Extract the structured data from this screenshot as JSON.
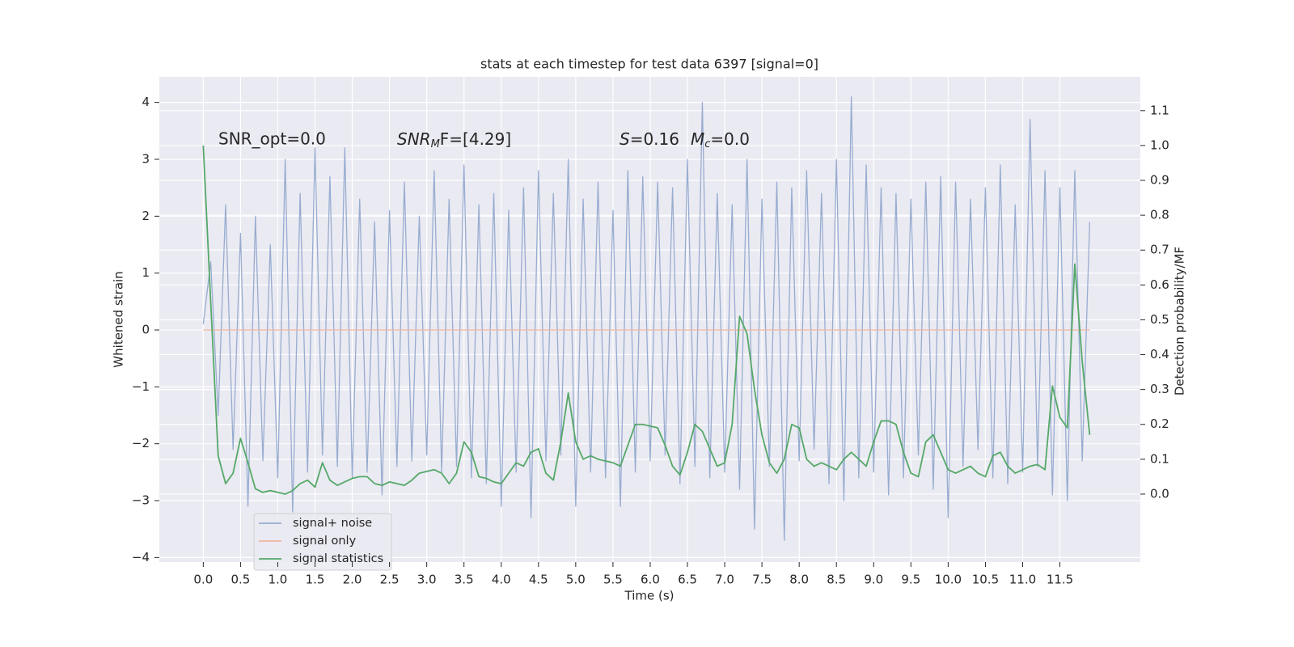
{
  "chart_data": {
    "type": "line",
    "title": "stats at each timestep for test data 6397 [signal=0]",
    "xlabel": "Time (s)",
    "ylabel": "Whitened strain",
    "y2label": "Detection probability/MF",
    "annotations": [
      [
        "SNR_opt=0.0"
      ],
      [
        "SNR",
        "M",
        "F=[4.29]"
      ],
      [
        "S",
        "=0.16",
        "M",
        "c",
        "=0.0"
      ]
    ],
    "x": [
      0,
      0.1,
      0.2,
      0.3,
      0.4,
      0.5,
      0.6,
      0.7,
      0.8,
      0.9,
      1,
      1.1,
      1.2,
      1.3,
      1.4,
      1.5,
      1.6,
      1.7,
      1.8,
      1.9,
      2,
      2.1,
      2.2,
      2.3,
      2.4,
      2.5,
      2.6,
      2.7,
      2.8,
      2.9,
      3,
      3.1,
      3.2,
      3.3,
      3.4,
      3.5,
      3.6,
      3.7,
      3.8,
      3.9,
      4,
      4.1,
      4.2,
      4.3,
      4.4,
      4.5,
      4.6,
      4.7,
      4.8,
      4.9,
      5,
      5.1,
      5.2,
      5.3,
      5.4,
      5.5,
      5.6,
      5.7,
      5.8,
      5.9,
      6,
      6.1,
      6.2,
      6.3,
      6.4,
      6.5,
      6.6,
      6.7,
      6.8,
      6.9,
      7,
      7.1,
      7.2,
      7.3,
      7.4,
      7.5,
      7.6,
      7.7,
      7.8,
      7.9,
      8,
      8.1,
      8.2,
      8.3,
      8.4,
      8.5,
      8.6,
      8.7,
      8.8,
      8.9,
      9,
      9.1,
      9.2,
      9.3,
      9.4,
      9.5,
      9.6,
      9.7,
      9.8,
      9.9,
      10,
      10.1,
      10.2,
      10.3,
      10.4,
      10.5,
      10.6,
      10.7,
      10.8,
      10.9,
      11,
      11.1,
      11.2,
      11.3,
      11.4,
      11.5,
      11.6,
      11.7,
      11.8,
      11.9
    ],
    "series": [
      {
        "name": "signal+ noise",
        "color": "#98acd0",
        "axis": "y",
        "values": [
          0.1,
          1.2,
          -1.5,
          2.2,
          -2.1,
          1.7,
          -3.1,
          2.0,
          -2.3,
          1.5,
          -2.6,
          3.0,
          -3.2,
          2.4,
          -2.5,
          3.2,
          -2.2,
          2.7,
          -2.4,
          3.2,
          -2.6,
          2.3,
          -2.5,
          1.9,
          -2.9,
          2.1,
          -2.4,
          2.6,
          -2.3,
          2.0,
          -2.2,
          2.8,
          -2.5,
          2.3,
          -2.4,
          2.9,
          -2.6,
          2.2,
          -2.7,
          2.4,
          -3.1,
          2.1,
          -2.5,
          2.5,
          -3.3,
          2.8,
          -2.3,
          2.4,
          -2.2,
          3.0,
          -3.1,
          2.3,
          -2.5,
          2.6,
          -2.6,
          2.1,
          -3.1,
          2.8,
          -2.5,
          2.7,
          -2.3,
          2.6,
          -2.2,
          2.5,
          -2.7,
          3.0,
          -2.4,
          4.0,
          -2.6,
          2.4,
          -2.5,
          2.2,
          -2.8,
          3.0,
          -3.5,
          2.3,
          -2.4,
          2.6,
          -3.7,
          2.5,
          -2.3,
          2.8,
          -2.1,
          2.4,
          -2.7,
          3.0,
          -3.0,
          4.1,
          -2.6,
          2.9,
          -2.5,
          2.5,
          -2.9,
          2.4,
          -2.6,
          2.3,
          -2.2,
          2.6,
          -2.8,
          2.7,
          -3.3,
          2.6,
          -2.4,
          2.3,
          -2.1,
          2.5,
          -2.6,
          2.9,
          -2.7,
          2.2,
          -2.5,
          3.7,
          -2.4,
          2.8,
          -2.9,
          2.5,
          -3.0,
          2.8,
          -2.3,
          1.9
        ]
      },
      {
        "name": "signal only",
        "color": "#eeb5a0",
        "axis": "y",
        "values": [
          0,
          0,
          0,
          0,
          0,
          0,
          0,
          0,
          0,
          0,
          0,
          0,
          0,
          0,
          0,
          0,
          0,
          0,
          0,
          0,
          0,
          0,
          0,
          0,
          0,
          0,
          0,
          0,
          0,
          0,
          0,
          0,
          0,
          0,
          0,
          0,
          0,
          0,
          0,
          0,
          0,
          0,
          0,
          0,
          0,
          0,
          0,
          0,
          0,
          0,
          0,
          0,
          0,
          0,
          0,
          0,
          0,
          0,
          0,
          0,
          0,
          0,
          0,
          0,
          0,
          0,
          0,
          0,
          0,
          0,
          0,
          0,
          0,
          0,
          0,
          0,
          0,
          0,
          0,
          0,
          0,
          0,
          0,
          0,
          0,
          0,
          0,
          0,
          0,
          0,
          0,
          0,
          0,
          0,
          0,
          0,
          0,
          0,
          0,
          0,
          0,
          0,
          0,
          0,
          0,
          0,
          0,
          0,
          0,
          0,
          0,
          0,
          0,
          0,
          0,
          0,
          0,
          0,
          0,
          0
        ]
      },
      {
        "name": "signal statistics",
        "color": "#55a868",
        "axis": "y2",
        "values": [
          1.0,
          0.55,
          0.11,
          0.03,
          0.06,
          0.16,
          0.09,
          0.015,
          0.005,
          0.01,
          0.005,
          0.0,
          0.01,
          0.03,
          0.04,
          0.02,
          0.09,
          0.04,
          0.025,
          0.035,
          0.045,
          0.05,
          0.05,
          0.03,
          0.025,
          0.035,
          0.03,
          0.025,
          0.04,
          0.06,
          0.065,
          0.07,
          0.06,
          0.03,
          0.06,
          0.15,
          0.12,
          0.05,
          0.045,
          0.035,
          0.03,
          0.06,
          0.09,
          0.08,
          0.12,
          0.13,
          0.06,
          0.04,
          0.15,
          0.29,
          0.15,
          0.1,
          0.11,
          0.1,
          0.095,
          0.09,
          0.08,
          0.14,
          0.2,
          0.2,
          0.195,
          0.19,
          0.14,
          0.08,
          0.055,
          0.12,
          0.2,
          0.18,
          0.13,
          0.08,
          0.09,
          0.2,
          0.51,
          0.46,
          0.3,
          0.17,
          0.09,
          0.06,
          0.1,
          0.2,
          0.19,
          0.1,
          0.08,
          0.09,
          0.08,
          0.07,
          0.1,
          0.12,
          0.1,
          0.08,
          0.15,
          0.21,
          0.21,
          0.2,
          0.12,
          0.06,
          0.05,
          0.15,
          0.17,
          0.12,
          0.07,
          0.06,
          0.07,
          0.08,
          0.06,
          0.05,
          0.11,
          0.12,
          0.08,
          0.06,
          0.07,
          0.08,
          0.085,
          0.07,
          0.31,
          0.22,
          0.19,
          0.66,
          0.38,
          0.17
        ]
      }
    ],
    "xlim": [
      -0.59,
      12.58
    ],
    "xticks": [
      {
        "value": 0,
        "label": "0.0"
      },
      0.5,
      {
        "value": 1,
        "label": "1.0"
      },
      1.5,
      {
        "value": 2,
        "label": "2.0"
      },
      2.5,
      {
        "value": 3,
        "label": "3.0"
      },
      3.5,
      {
        "value": 4,
        "label": "4.0"
      },
      4.5,
      {
        "value": 5,
        "label": "5.0"
      },
      5.5,
      {
        "value": 6,
        "label": "6.0"
      },
      6.5,
      {
        "value": 7,
        "label": "7.0"
      },
      7.5,
      {
        "value": 8,
        "label": "8.0"
      },
      8.5,
      {
        "value": 9,
        "label": "9.0"
      },
      9.5,
      {
        "value": 10,
        "label": "10.0"
      },
      10.5,
      {
        "value": 11,
        "label": "11.0"
      },
      11.5
    ],
    "ylim": [
      -4.08,
      4.45
    ],
    "yticks": [
      {
        "value": -4,
        "label": "−4"
      },
      {
        "value": -3,
        "label": "−3"
      },
      {
        "value": -2,
        "label": "−2"
      },
      {
        "value": -1,
        "label": "−1"
      },
      0,
      1,
      2,
      3,
      4
    ],
    "y2lim": [
      -0.195,
      1.197
    ],
    "y2ticks": [
      {
        "value": 0,
        "label": "0.0"
      },
      0.1,
      0.2,
      0.3,
      0.4,
      0.5,
      0.6,
      0.7,
      0.8,
      0.9,
      {
        "value": 1,
        "label": "1.0"
      },
      1.1
    ],
    "grid": true,
    "legend": "lower left"
  }
}
